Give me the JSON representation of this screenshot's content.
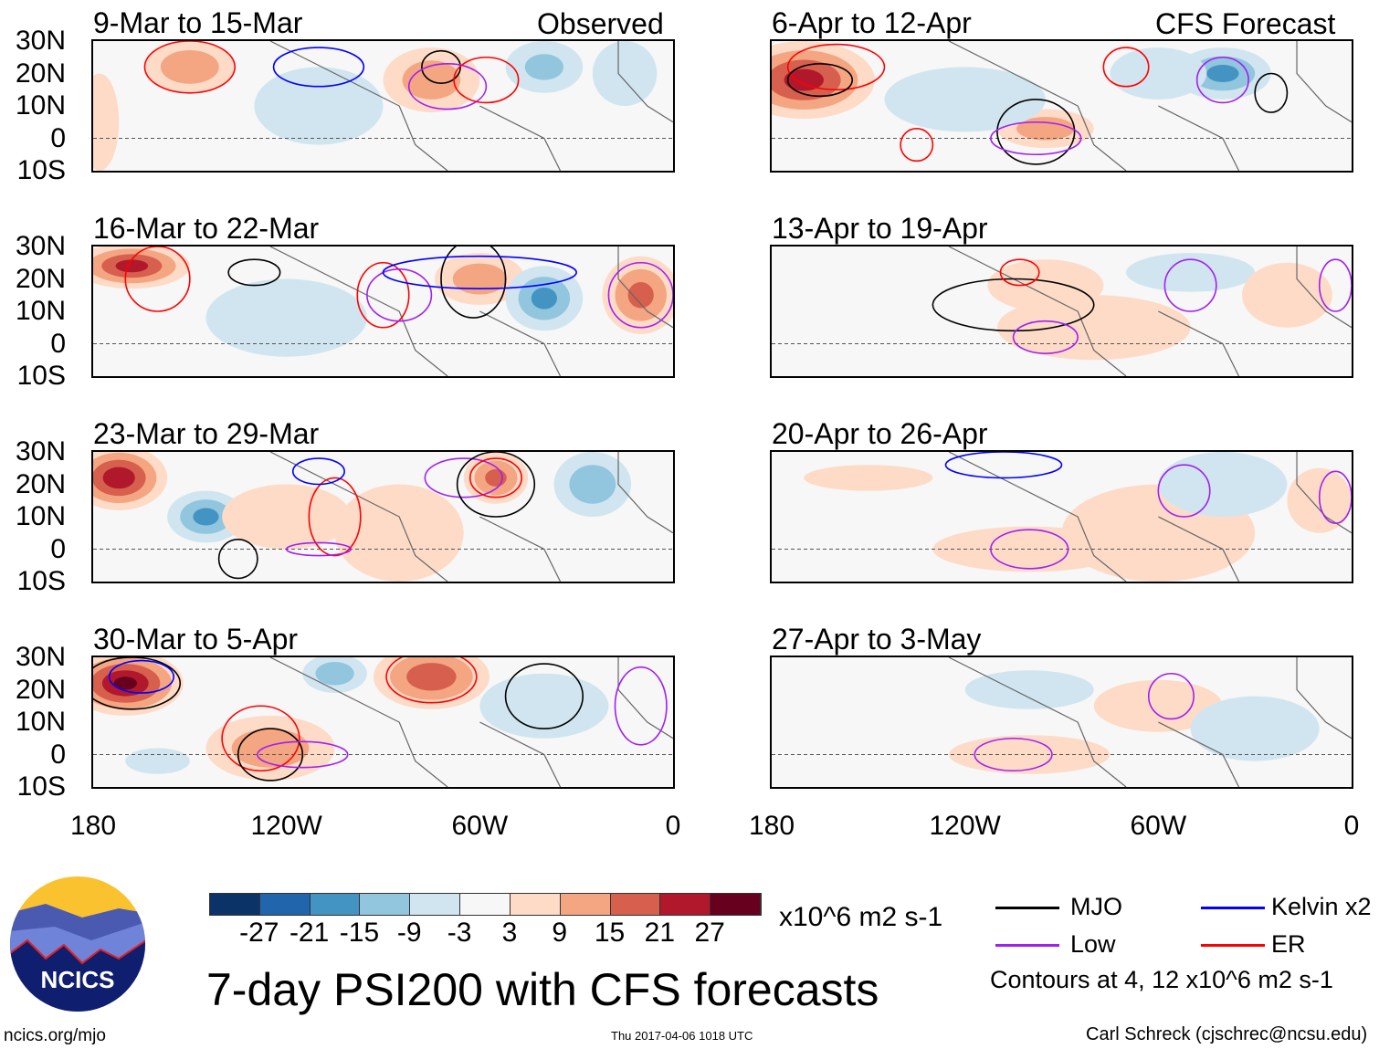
{
  "labels": {
    "observed": "Observed",
    "forecast": "CFS Forecast"
  },
  "lat_ticks": [
    "30N",
    "20N",
    "10N",
    "0",
    "10S"
  ],
  "lon_ticks": [
    "180",
    "120W",
    "60W",
    "0"
  ],
  "colors": [
    "#0b3368",
    "#2166ac",
    "#4393c3",
    "#92c5de",
    "#d1e5f0",
    "#f7f7f7",
    "#fddbc7",
    "#f4a582",
    "#d6604d",
    "#b2182b",
    "#67001f"
  ],
  "colorbar": {
    "labels": [
      "-27",
      "-21",
      "-15",
      "-9",
      "-3",
      "3",
      "9",
      "15",
      "21",
      "27"
    ],
    "units": "x10^6 m2 s-1"
  },
  "legend": {
    "mjo": "MJO",
    "kelvin": "Kelvin x2",
    "low": "Low",
    "er": "ER",
    "contours_note": "Contours at 4, 12 x10^6 m2 s-1",
    "line_colors": {
      "mjo": "#000000",
      "kelvin": "#0000ff",
      "low": "#a020f0",
      "er": "#ff0000"
    }
  },
  "title": "7-day PSI200 with CFS forecasts",
  "logo_text": "NCICS",
  "footer": {
    "url": "ncics.org/mjo",
    "timestamp": "Thu 2017-04-06 1018 UTC",
    "author": "Carl Schreck (cjschrec@ncsu.edu)"
  },
  "panels": [
    {
      "title": "9-Mar to 15-Mar",
      "blobs": [
        [
          150,
          22,
          14,
          8,
          14
        ],
        [
          75,
          18,
          15,
          10,
          12
        ],
        [
          40,
          22,
          12,
          8,
          -9
        ],
        [
          110,
          10,
          20,
          12,
          -5
        ],
        [
          178,
          5,
          6,
          15,
          5
        ],
        [
          15,
          20,
          10,
          10,
          -5
        ]
      ],
      "contours": [
        [
          "er",
          150,
          22,
          14,
          8
        ],
        [
          "mjo",
          72,
          22,
          6,
          5
        ],
        [
          "low",
          70,
          16,
          12,
          7
        ],
        [
          "er",
          58,
          18,
          10,
          7
        ],
        [
          "kelvin",
          110,
          22,
          14,
          6
        ]
      ]
    },
    {
      "title": "6-Apr to 12-Apr",
      "blobs": [
        [
          170,
          18,
          22,
          12,
          22
        ],
        [
          95,
          3,
          15,
          6,
          12
        ],
        [
          40,
          20,
          15,
          8,
          -15
        ],
        [
          60,
          20,
          15,
          8,
          -6
        ],
        [
          120,
          12,
          25,
          10,
          -3
        ]
      ],
      "contours": [
        [
          "er",
          160,
          22,
          15,
          7
        ],
        [
          "mjo",
          165,
          18,
          10,
          5
        ],
        [
          "mjo",
          98,
          2,
          12,
          10
        ],
        [
          "low",
          98,
          0,
          14,
          5
        ],
        [
          "er",
          70,
          22,
          7,
          6
        ],
        [
          "low",
          40,
          18,
          8,
          7
        ],
        [
          "mjo",
          25,
          14,
          5,
          6
        ],
        [
          "er",
          135,
          -2,
          5,
          5
        ]
      ]
    },
    {
      "title": "16-Mar to 22-Mar",
      "blobs": [
        [
          168,
          24,
          18,
          7,
          22
        ],
        [
          60,
          20,
          14,
          8,
          12
        ],
        [
          40,
          14,
          12,
          10,
          -15
        ],
        [
          10,
          15,
          12,
          12,
          15
        ],
        [
          120,
          8,
          25,
          12,
          -4
        ]
      ],
      "contours": [
        [
          "er",
          160,
          20,
          10,
          10
        ],
        [
          "er",
          90,
          15,
          8,
          10
        ],
        [
          "mjo",
          62,
          20,
          10,
          12
        ],
        [
          "low",
          85,
          15,
          10,
          8
        ],
        [
          "kelvin",
          60,
          22,
          30,
          5
        ],
        [
          "low",
          10,
          15,
          10,
          10
        ],
        [
          "mjo",
          130,
          22,
          8,
          4
        ]
      ]
    },
    {
      "title": "13-Apr to 19-Apr",
      "blobs": [
        [
          95,
          18,
          18,
          8,
          6
        ],
        [
          50,
          22,
          20,
          6,
          -6
        ],
        [
          80,
          5,
          30,
          10,
          4
        ],
        [
          20,
          15,
          14,
          10,
          5
        ]
      ],
      "contours": [
        [
          "mjo",
          105,
          12,
          25,
          8
        ],
        [
          "er",
          103,
          22,
          6,
          4
        ],
        [
          "low",
          95,
          2,
          10,
          5
        ],
        [
          "low",
          50,
          18,
          8,
          8
        ],
        [
          "low",
          5,
          18,
          5,
          8
        ]
      ]
    },
    {
      "title": "23-Mar to 29-Mar",
      "blobs": [
        [
          172,
          22,
          15,
          10,
          24
        ],
        [
          145,
          10,
          12,
          8,
          -15
        ],
        [
          55,
          22,
          10,
          8,
          15
        ],
        [
          25,
          20,
          12,
          10,
          -12
        ],
        [
          120,
          10,
          20,
          10,
          5
        ],
        [
          85,
          5,
          20,
          15,
          4
        ]
      ],
      "contours": [
        [
          "er",
          105,
          10,
          8,
          12
        ],
        [
          "low",
          65,
          22,
          12,
          6
        ],
        [
          "mjo",
          55,
          20,
          12,
          10
        ],
        [
          "er",
          55,
          22,
          8,
          6
        ],
        [
          "low",
          110,
          0,
          10,
          2
        ],
        [
          "mjo",
          135,
          -3,
          6,
          6
        ],
        [
          "kelvin",
          110,
          24,
          8,
          4
        ]
      ]
    },
    {
      "title": "20-Apr to 26-Apr",
      "blobs": [
        [
          150,
          22,
          20,
          4,
          4
        ],
        [
          100,
          0,
          30,
          7,
          4
        ],
        [
          60,
          5,
          30,
          15,
          4
        ],
        [
          40,
          20,
          20,
          10,
          -4
        ],
        [
          10,
          15,
          10,
          10,
          4
        ]
      ],
      "contours": [
        [
          "low",
          100,
          0,
          12,
          6
        ],
        [
          "low",
          52,
          18,
          8,
          8
        ],
        [
          "kelvin",
          108,
          26,
          18,
          4
        ],
        [
          "low",
          5,
          16,
          5,
          8
        ]
      ]
    },
    {
      "title": "30-Mar to 5-Apr",
      "blobs": [
        [
          170,
          22,
          18,
          10,
          27
        ],
        [
          125,
          2,
          20,
          10,
          12
        ],
        [
          75,
          24,
          18,
          10,
          18
        ],
        [
          105,
          25,
          10,
          6,
          -12
        ],
        [
          160,
          -2,
          10,
          4,
          -6
        ],
        [
          40,
          15,
          20,
          10,
          -5
        ]
      ],
      "contours": [
        [
          "mjo",
          168,
          22,
          15,
          8
        ],
        [
          "kelvin",
          165,
          24,
          10,
          5
        ],
        [
          "er",
          75,
          24,
          14,
          8
        ],
        [
          "er",
          128,
          5,
          12,
          10
        ],
        [
          "mjo",
          125,
          0,
          10,
          8
        ],
        [
          "low",
          115,
          0,
          14,
          4
        ],
        [
          "mjo",
          40,
          18,
          12,
          10
        ],
        [
          "low",
          10,
          15,
          8,
          12
        ]
      ]
    },
    {
      "title": "27-Apr to 3-May",
      "blobs": [
        [
          100,
          20,
          20,
          6,
          -4
        ],
        [
          60,
          15,
          20,
          8,
          4
        ],
        [
          100,
          0,
          25,
          6,
          4
        ],
        [
          30,
          8,
          20,
          10,
          -4
        ]
      ],
      "contours": [
        [
          "low",
          105,
          0,
          12,
          5
        ],
        [
          "low",
          56,
          18,
          7,
          7
        ]
      ]
    }
  ]
}
